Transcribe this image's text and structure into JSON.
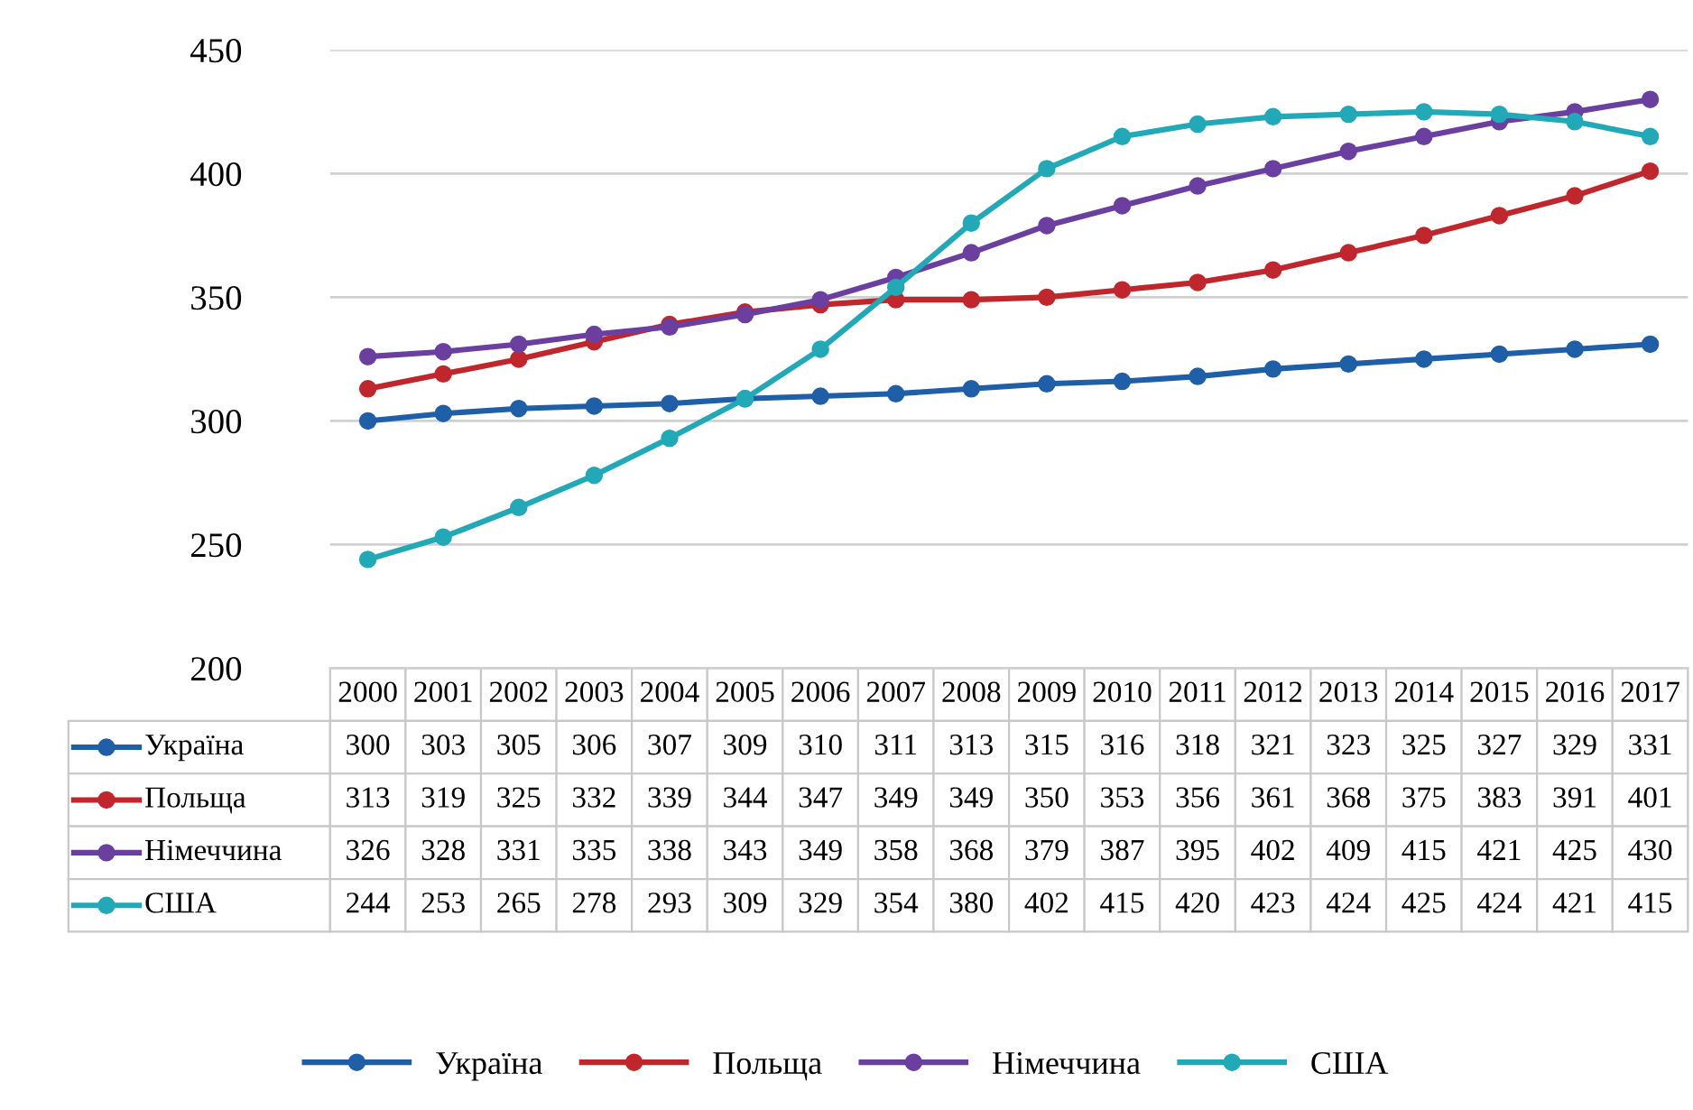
{
  "chart_data": {
    "type": "line",
    "categories": [
      "2000",
      "2001",
      "2002",
      "2003",
      "2004",
      "2005",
      "2006",
      "2007",
      "2008",
      "2009",
      "2010",
      "2011",
      "2012",
      "2013",
      "2014",
      "2015",
      "2016",
      "2017"
    ],
    "series": [
      {
        "name": "Україна",
        "color": "#1f5fa8",
        "values": [
          300,
          303,
          305,
          306,
          307,
          309,
          310,
          311,
          313,
          315,
          316,
          318,
          321,
          323,
          325,
          327,
          329,
          331
        ]
      },
      {
        "name": "Польща",
        "color": "#c0272d",
        "values": [
          313,
          319,
          325,
          332,
          339,
          344,
          347,
          349,
          349,
          350,
          353,
          356,
          361,
          368,
          375,
          383,
          391,
          401
        ]
      },
      {
        "name": "Німеччина",
        "color": "#6a3fa0",
        "values": [
          326,
          328,
          331,
          335,
          338,
          343,
          349,
          358,
          368,
          379,
          387,
          395,
          402,
          409,
          415,
          421,
          425,
          430
        ]
      },
      {
        "name": "США",
        "color": "#22a9b8",
        "values": [
          244,
          253,
          265,
          278,
          293,
          309,
          329,
          354,
          380,
          402,
          415,
          420,
          423,
          424,
          425,
          424,
          421,
          415
        ]
      }
    ],
    "ylim": [
      200,
      450
    ],
    "yticks": [
      200,
      250,
      300,
      350,
      400,
      450
    ],
    "grid": "y",
    "legend": "bottom",
    "marker": "circle",
    "line_style": "solid",
    "data_labels": true
  }
}
